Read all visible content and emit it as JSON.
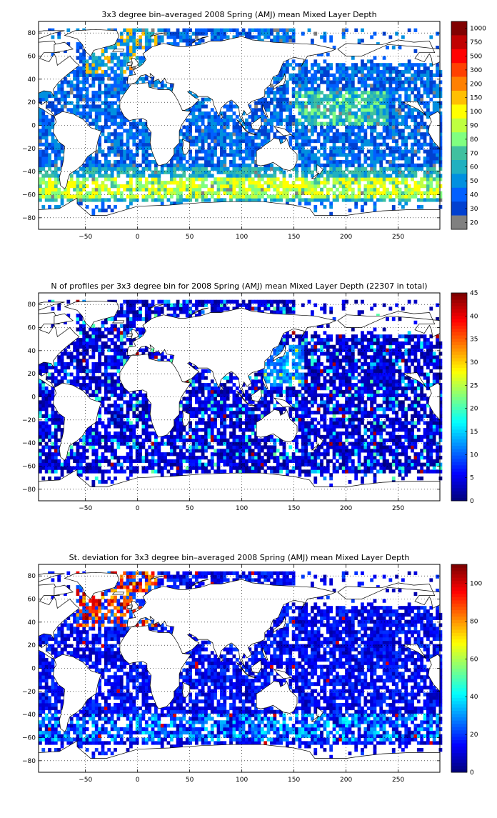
{
  "figure": {
    "background": "#ffffff",
    "map_background": "#ffffff",
    "missing_color": "#808080",
    "land_color": "#ffffff",
    "coast_color": "#000000",
    "grid": true,
    "grid_style": "dotted"
  },
  "chart_data": [
    {
      "type": "heatmap",
      "title": "3x3 degree bin–averaged 2008 Spring (AMJ) mean Mixed Layer Depth",
      "x_ticks": [
        -50,
        0,
        50,
        100,
        150,
        200,
        250
      ],
      "y_ticks": [
        80,
        60,
        40,
        20,
        0,
        -20,
        -40,
        -60,
        -80
      ],
      "x_tick_labels": [
        "−50",
        "0",
        "50",
        "100",
        "150",
        "200",
        "250"
      ],
      "y_tick_labels": [
        "80",
        "60",
        "40",
        "20",
        "0",
        "−20",
        "−40",
        "−60",
        "−80"
      ],
      "xlim": [
        -95,
        290
      ],
      "ylim": [
        -90,
        90
      ],
      "bin_size_deg": 3,
      "colorbar": {
        "type": "discrete",
        "labels": [
          "1000",
          "750",
          "500",
          "300",
          "200",
          "150",
          "100",
          "90",
          "80",
          "70",
          "60",
          "50",
          "40",
          "30",
          "20"
        ],
        "colors": [
          "#800000",
          "#c00000",
          "#ff0000",
          "#ff4000",
          "#ff8000",
          "#ffbf00",
          "#ffff00",
          "#bfff40",
          "#80ff80",
          "#40c0a0",
          "#20b0c0",
          "#0090e0",
          "#0060ff",
          "#0040d0",
          "#808080"
        ]
      }
    },
    {
      "type": "heatmap",
      "title": "N of profiles per 3x3 degree bin for 2008 Spring (AMJ) mean Mixed Layer Depth  (22307 in total)",
      "x_ticks": [
        -50,
        0,
        50,
        100,
        150,
        200,
        250
      ],
      "y_ticks": [
        80,
        60,
        40,
        20,
        0,
        -20,
        -40,
        -60,
        -80
      ],
      "x_tick_labels": [
        "−50",
        "0",
        "50",
        "100",
        "150",
        "200",
        "250"
      ],
      "y_tick_labels": [
        "80",
        "60",
        "40",
        "20",
        "0",
        "−20",
        "−40",
        "−60",
        "−80"
      ],
      "xlim": [
        -95,
        290
      ],
      "ylim": [
        -90,
        90
      ],
      "bin_size_deg": 3,
      "total_profiles": 22307,
      "colorbar": {
        "type": "continuous",
        "min": 0,
        "max": 45,
        "ticks": [
          45,
          40,
          35,
          30,
          25,
          20,
          15,
          10,
          5,
          0
        ],
        "tick_labels": [
          "45",
          "40",
          "35",
          "30",
          "25",
          "20",
          "15",
          "10",
          "5",
          "0"
        ]
      }
    },
    {
      "type": "heatmap",
      "title": "St. deviation for 3x3 degree bin–averaged 2008 Spring (AMJ) mean Mixed Layer Depth",
      "x_ticks": [
        -50,
        0,
        50,
        100,
        150,
        200,
        250
      ],
      "y_ticks": [
        80,
        60,
        40,
        20,
        0,
        -20,
        -40,
        -60,
        -80
      ],
      "x_tick_labels": [
        "−50",
        "0",
        "50",
        "100",
        "150",
        "200",
        "250"
      ],
      "y_tick_labels": [
        "80",
        "60",
        "40",
        "20",
        "0",
        "−20",
        "−40",
        "−60",
        "−80"
      ],
      "xlim": [
        -95,
        290
      ],
      "ylim": [
        -90,
        90
      ],
      "bin_size_deg": 3,
      "colorbar": {
        "type": "continuous",
        "min": 0,
        "max": 110,
        "ticks": [
          100,
          80,
          60,
          40,
          20,
          0
        ],
        "tick_labels": [
          "100",
          "80",
          "60",
          "40",
          "20",
          "0"
        ]
      }
    }
  ]
}
